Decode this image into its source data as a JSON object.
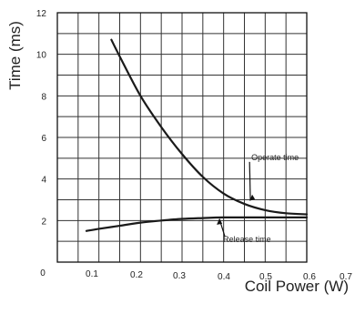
{
  "chart_data": {
    "type": "line",
    "xlabel": "Coil Power (W)",
    "ylabel": "Time (ms)",
    "xlim": [
      0,
      0.7
    ],
    "ylim": [
      0,
      12
    ],
    "x_ticks": [
      0,
      0.1,
      0.2,
      0.3,
      0.4,
      0.5,
      0.6,
      0.7
    ],
    "x_tick_labels": [
      "0",
      "0.1",
      "0.2",
      "0.3",
      "0.4",
      "0.5",
      "0.6",
      "0.7"
    ],
    "y_ticks": [
      2,
      4,
      6,
      8,
      10,
      12
    ],
    "y_tick_labels": [
      "2",
      "4",
      "6",
      "8",
      "10",
      "12"
    ],
    "grid": true,
    "series": [
      {
        "name": "Operate time",
        "color": "#1a1a1a",
        "points": [
          [
            0.13,
            10.7
          ],
          [
            0.15,
            9.9
          ],
          [
            0.2,
            8.0
          ],
          [
            0.25,
            6.5
          ],
          [
            0.3,
            5.2
          ],
          [
            0.35,
            4.1
          ],
          [
            0.4,
            3.3
          ],
          [
            0.45,
            2.8
          ],
          [
            0.5,
            2.5
          ],
          [
            0.55,
            2.35
          ],
          [
            0.6,
            2.3
          ]
        ]
      },
      {
        "name": "Release time",
        "color": "#1a1a1a",
        "points": [
          [
            0.07,
            1.5
          ],
          [
            0.1,
            1.6
          ],
          [
            0.15,
            1.75
          ],
          [
            0.2,
            1.9
          ],
          [
            0.25,
            2.0
          ],
          [
            0.3,
            2.08
          ],
          [
            0.35,
            2.12
          ],
          [
            0.4,
            2.15
          ],
          [
            0.5,
            2.15
          ],
          [
            0.6,
            2.15
          ]
        ]
      }
    ],
    "annotations": [
      {
        "series": "Operate time",
        "text": "Operate time",
        "anchor": [
          0.46,
          2.9
        ],
        "label": [
          0.55,
          5.0
        ]
      },
      {
        "series": "Release time",
        "text": "Release time",
        "anchor": [
          0.39,
          2.15
        ],
        "label": [
          0.45,
          1.05
        ]
      }
    ]
  }
}
